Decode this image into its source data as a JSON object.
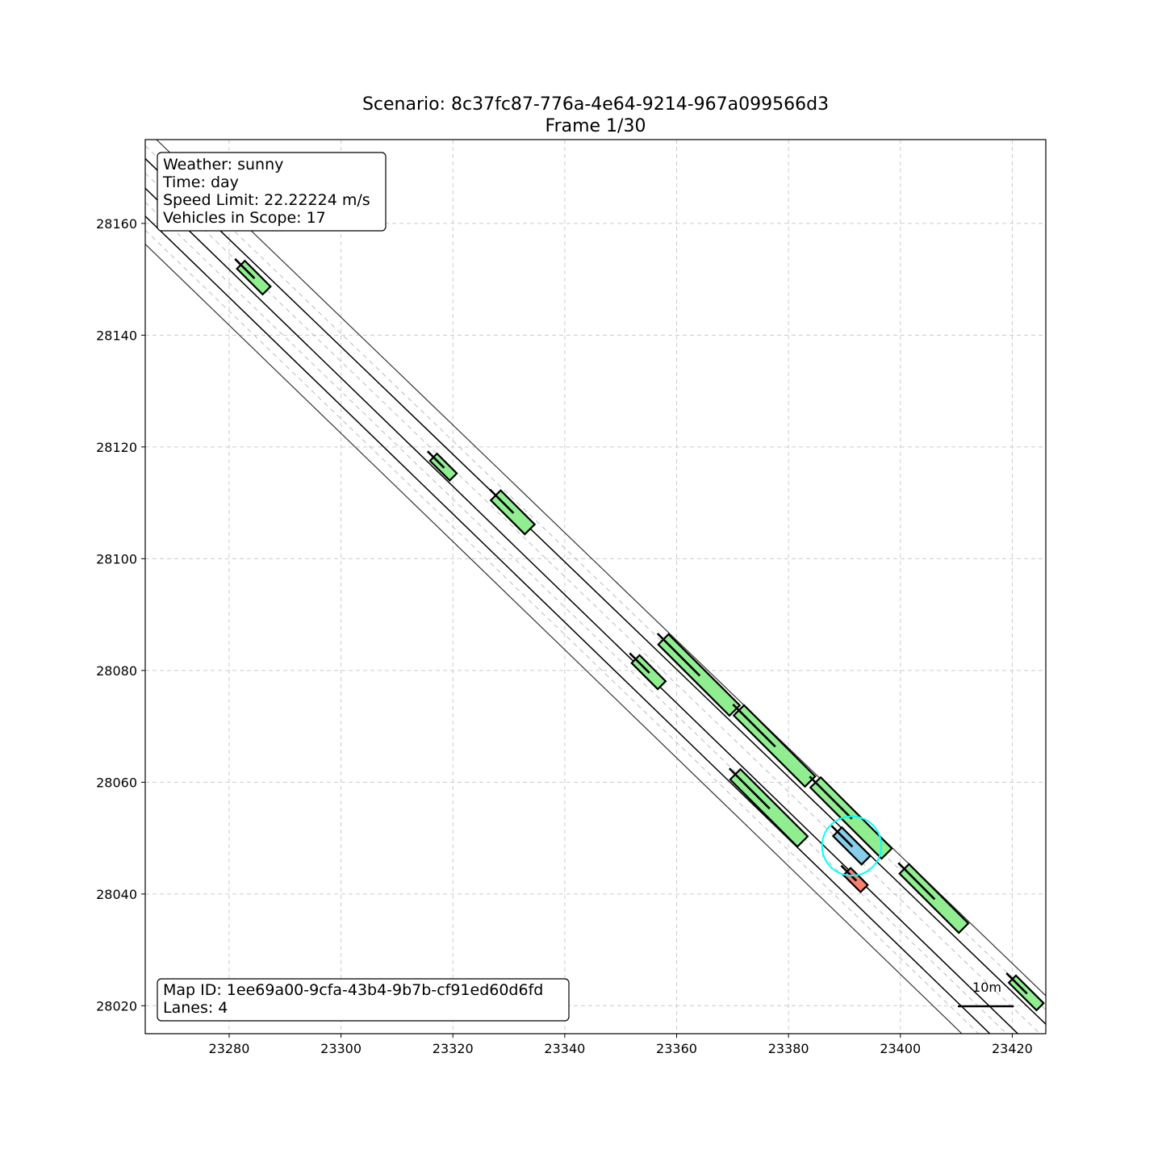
{
  "title": {
    "line1": "Scenario: 8c37fc87-776a-4e64-9214-967a099566d3",
    "line2": "Frame 1/30"
  },
  "info_box": {
    "weather": "Weather: sunny",
    "time": "Time: day",
    "speed_limit": "Speed Limit: 22.22224 m/s",
    "vehicles": "Vehicles in Scope: 17"
  },
  "map_box": {
    "map_id": "Map ID: 1ee69a00-9cfa-43b4-9b7b-cf91ed60d6fd",
    "lanes": "Lanes: 4"
  },
  "scale_bar": {
    "label": "10m",
    "length_m": 10
  },
  "colors": {
    "other_vehicle": "#90ee90",
    "ego_vehicle": "#87ceeb",
    "special_vehicle": "#fa8072",
    "ego_highlight": "#00ffff"
  },
  "chart_data": {
    "type": "map",
    "xlim": [
      23265,
      23426
    ],
    "ylim": [
      28015,
      28175
    ],
    "xticks": [
      "23280",
      "23300",
      "23320",
      "23340",
      "23360",
      "23380",
      "23400",
      "23420"
    ],
    "yticks": [
      "28020",
      "28040",
      "28060",
      "28080",
      "28100",
      "28120",
      "28140",
      "28160"
    ],
    "grid": true,
    "lane_lines": [
      {
        "x1": 23267,
        "y1": 28175,
        "x2": 23426,
        "y2": 28021.8,
        "style": "boundary"
      },
      {
        "x1": 23265,
        "y1": 28171.6,
        "x2": 23426,
        "y2": 28016.7,
        "style": "divider"
      },
      {
        "x1": 23265,
        "y1": 28166.3,
        "x2": 23421,
        "y2": 28015,
        "style": "divider"
      },
      {
        "x1": 23265,
        "y1": 28161.3,
        "x2": 23416,
        "y2": 28015,
        "style": "divider"
      },
      {
        "x1": 23265,
        "y1": 28156.3,
        "x2": 23411,
        "y2": 28015,
        "style": "boundary"
      },
      {
        "x1": 23265,
        "y1": 28173.9,
        "x2": 23426,
        "y2": 28019.3,
        "style": "dashed"
      },
      {
        "x1": 23265,
        "y1": 28169.0,
        "x2": 23426,
        "y2": 28014.0,
        "style": "dashed"
      },
      {
        "x1": 23265,
        "y1": 28163.8,
        "x2": 23419,
        "y2": 28015,
        "style": "dashed"
      },
      {
        "x1": 23265,
        "y1": 28158.8,
        "x2": 23414,
        "y2": 28015,
        "style": "dashed"
      }
    ],
    "vehicles": [
      {
        "id": "v1",
        "role": "other",
        "x": 23284.4,
        "y": 28150.3,
        "length": 6.5,
        "width": 2.0
      },
      {
        "id": "v2",
        "role": "other",
        "x": 23318.3,
        "y": 28116.4,
        "length": 5.0,
        "width": 1.8
      },
      {
        "id": "v3",
        "role": "other",
        "x": 23330.7,
        "y": 28108.3,
        "length": 8.6,
        "width": 2.5
      },
      {
        "id": "v4",
        "role": "other",
        "x": 23355.0,
        "y": 28079.7,
        "length": 6.6,
        "width": 2.0
      },
      {
        "id": "v5",
        "role": "other",
        "x": 23364.0,
        "y": 28079.2,
        "length": 18.0,
        "width": 2.6
      },
      {
        "id": "v6",
        "role": "other",
        "x": 23377.5,
        "y": 28066.5,
        "length": 18.0,
        "width": 2.6
      },
      {
        "id": "v7",
        "role": "other",
        "x": 23376.5,
        "y": 28055.4,
        "length": 17.0,
        "width": 2.6
      },
      {
        "id": "v8",
        "role": "other",
        "x": 23391.2,
        "y": 28053.6,
        "length": 18.0,
        "width": 2.6
      },
      {
        "id": "v9",
        "role": "ego",
        "x": 23391.3,
        "y": 28048.6,
        "length": 7.2,
        "width": 2.2
      },
      {
        "id": "v10",
        "role": "special",
        "x": 23392.0,
        "y": 28042.5,
        "length": 4.3,
        "width": 1.8
      },
      {
        "id": "v11",
        "role": "other",
        "x": 23406.0,
        "y": 28039.2,
        "length": 15.0,
        "width": 2.4
      },
      {
        "id": "v12",
        "role": "other",
        "x": 23422.5,
        "y": 28022.3,
        "length": 7.0,
        "width": 1.8
      }
    ],
    "ego_circle": {
      "x": 23391.3,
      "y": 28048.6,
      "r": 5.3
    }
  }
}
